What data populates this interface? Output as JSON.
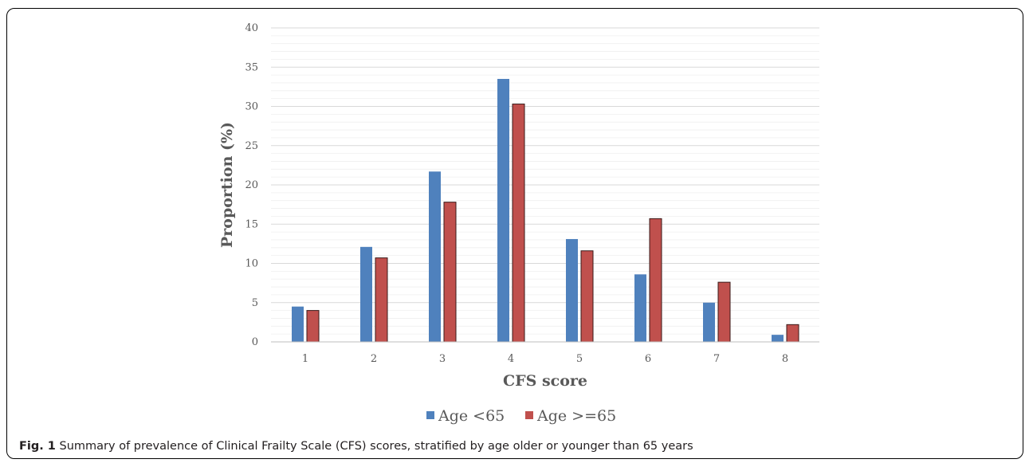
{
  "chart_data": {
    "type": "bar",
    "categories": [
      "1",
      "2",
      "3",
      "4",
      "5",
      "6",
      "7",
      "8"
    ],
    "series": [
      {
        "name": "Age <65",
        "color": "#4f81bd",
        "values": [
          4.5,
          12.1,
          21.7,
          33.5,
          13.1,
          8.6,
          5.0,
          0.9
        ]
      },
      {
        "name": "Age >=65",
        "color": "#c0504d",
        "values": [
          4.0,
          10.7,
          17.8,
          30.3,
          11.6,
          15.7,
          7.6,
          2.2
        ]
      }
    ],
    "xlabel": "CFS score",
    "ylabel": "Proportion (%)",
    "ylim": [
      0,
      40
    ],
    "yticks": [
      0,
      5,
      10,
      15,
      20,
      25,
      30,
      35,
      40
    ],
    "grid": true,
    "legend_position": "bottom"
  },
  "caption": {
    "label": "Fig. 1",
    "text": " Summary of prevalence of Clinical Frailty Scale (CFS) scores, stratified by age older or younger than 65 years"
  }
}
